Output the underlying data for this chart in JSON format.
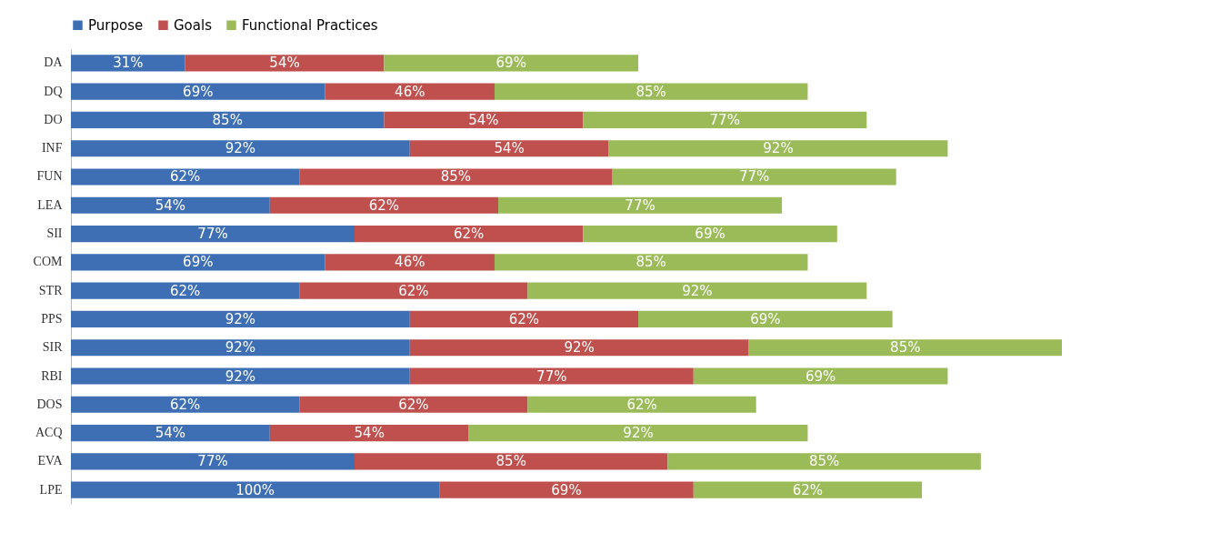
{
  "chart_data": {
    "type": "bar",
    "orientation": "horizontal",
    "stacked": true,
    "legend": "top",
    "grid": false,
    "categories": [
      "DA",
      "DQ",
      "DO",
      "INF",
      "FUN",
      "LEA",
      "SII",
      "COM",
      "STR",
      "PPS",
      "SIR",
      "RBI",
      "DOS",
      "ACQ",
      "EVA",
      "LPE"
    ],
    "series": [
      {
        "name": "Purpose",
        "color": "#3e6fb5",
        "values": [
          31,
          69,
          85,
          92,
          62,
          54,
          77,
          69,
          62,
          92,
          92,
          92,
          62,
          54,
          77,
          100
        ],
        "value_labels": [
          "31%",
          "69%",
          "85%",
          "92%",
          "62%",
          "54%",
          "77%",
          "69%",
          "62%",
          "92%",
          "92%",
          "92%",
          "62%",
          "54%",
          "77%",
          "100%"
        ]
      },
      {
        "name": "Goals",
        "color": "#c0504d",
        "values": [
          54,
          46,
          54,
          54,
          85,
          62,
          62,
          46,
          62,
          62,
          92,
          77,
          62,
          54,
          85,
          69
        ],
        "value_labels": [
          "54%",
          "46%",
          "54%",
          "54%",
          "85%",
          "62%",
          "62%",
          "46%",
          "62%",
          "62%",
          "92%",
          "77%",
          "62%",
          "54%",
          "85%",
          "69%"
        ]
      },
      {
        "name": "Functional Practices",
        "color": "#9bbb59",
        "values": [
          69,
          85,
          77,
          92,
          77,
          77,
          69,
          85,
          92,
          69,
          85,
          69,
          62,
          92,
          85,
          62
        ],
        "value_labels": [
          "69%",
          "85%",
          "77%",
          "92%",
          "77%",
          "77%",
          "69%",
          "85%",
          "92%",
          "69%",
          "85%",
          "69%",
          "62%",
          "92%",
          "85%",
          "62%"
        ]
      }
    ]
  }
}
